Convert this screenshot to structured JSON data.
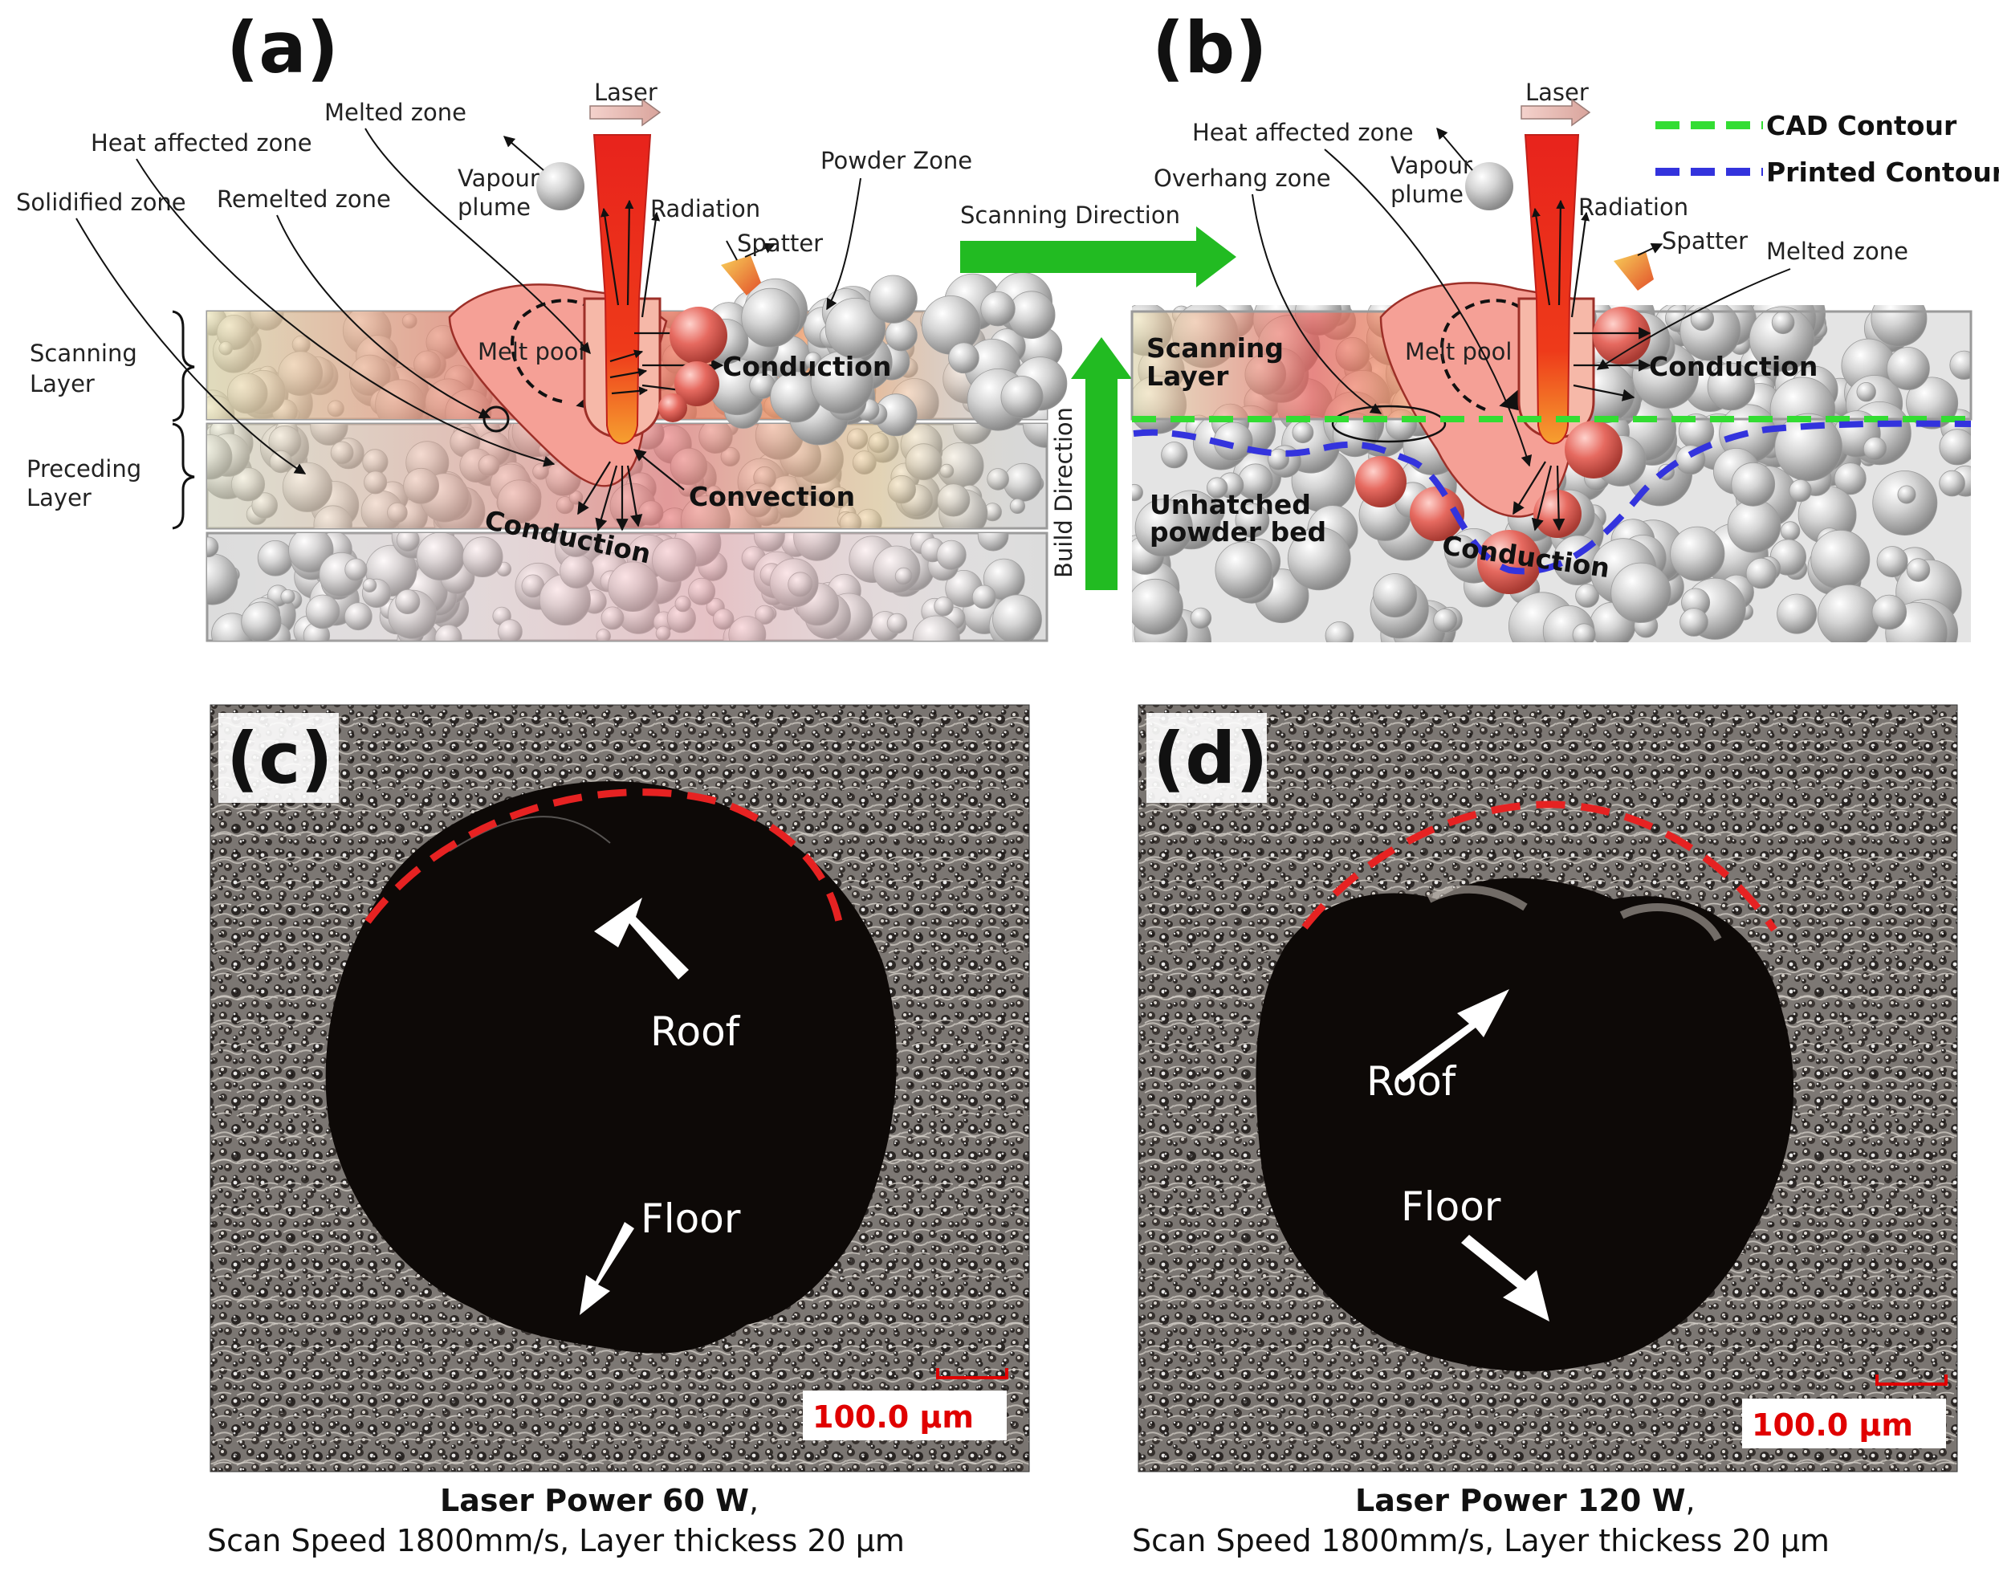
{
  "panels": {
    "a": {
      "letter": "(a)"
    },
    "b": {
      "letter": "(b)"
    },
    "c": {
      "letter": "(c)"
    },
    "d": {
      "letter": "(d)"
    }
  },
  "diagram_a": {
    "laser": "Laser",
    "melted_zone": "Melted zone",
    "heat_affected_zone": "Heat affected zone",
    "solidified_zone": "Solidified zone",
    "remelted_zone": "Remelted zone",
    "vapour_plume": "Vapour\nplume",
    "vapour_line1": "Vapour",
    "vapour_line2": "plume",
    "radiation": "Radiation",
    "spatter": "Spatter",
    "powder_zone": "Powder Zone",
    "scanning_layer_1": "Scanning",
    "scanning_layer_2": "Layer",
    "preceding_layer_1": "Preceding",
    "preceding_layer_2": "Layer",
    "melt_pool": "Melt pool",
    "conduction_right": "Conduction",
    "convection": "Convection",
    "conduction_bottom": "Conduction"
  },
  "middle": {
    "scanning_direction": "Scanning Direction",
    "build_direction": "Build Direction"
  },
  "diagram_b": {
    "laser": "Laser",
    "heat_affected_zone": "Heat affected zone",
    "overhang_zone": "Overhang zone",
    "vapour_line1": "Vapour",
    "vapour_line2": "plume",
    "radiation": "Radiation",
    "spatter": "Spatter",
    "melted_zone": "Melted zone",
    "scanning_layer_1": "Scanning",
    "scanning_layer_2": "Layer",
    "melt_pool": "Melt pool",
    "conduction_right": "Conduction",
    "unhatched_1": "Unhatched",
    "unhatched_2": "powder bed",
    "conduction_bottom": "Conduction",
    "legend": [
      {
        "label": "CAD Contour",
        "color": "#33dd33"
      },
      {
        "label": "Printed Contour",
        "color": "#3333dd"
      }
    ]
  },
  "micrograph_c": {
    "roof": "Roof",
    "floor": "Floor",
    "scale": "100.0  µm",
    "caption_bold": "Laser Power 60 W",
    "caption_rest": ",",
    "caption_line2": "Scan Speed 1800mm/s, Layer thickess 20 µm"
  },
  "micrograph_d": {
    "roof": "Roof",
    "floor": "Floor",
    "scale": "100.0  µm",
    "caption_bold": "Laser Power 120 W",
    "caption_rest": ",",
    "caption_line2": "Scan Speed 1800mm/s, Layer thickess 20 µm"
  },
  "colors": {
    "laser_red": "#e8231c",
    "melt_pink": "#f6a39a",
    "arrow_green": "#22bb22",
    "dashed_red": "#e62222",
    "scale_red": "#e00000"
  }
}
